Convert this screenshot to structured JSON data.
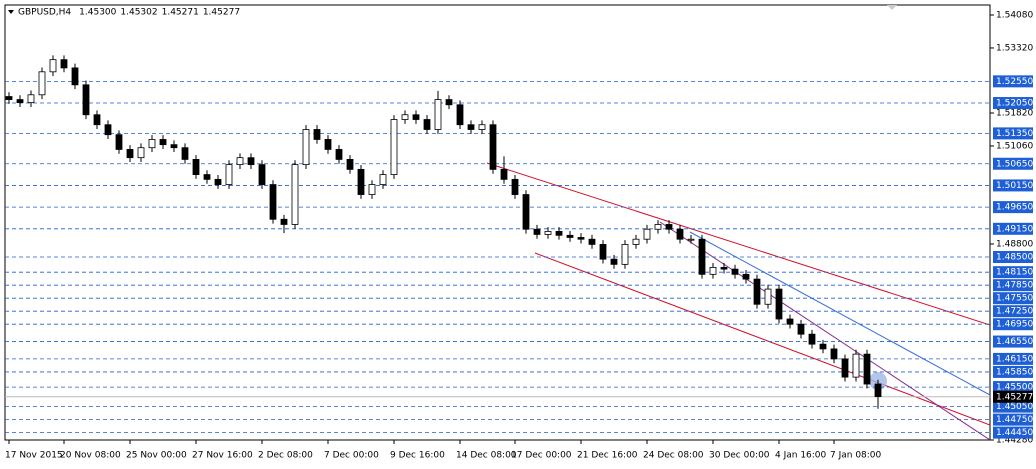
{
  "chart_data": {
    "type": "candlestick",
    "title": "GBPUSD,H4",
    "header_values": [
      {
        "value": 1.453,
        "label": "1.45300"
      },
      {
        "value": 1.45302,
        "label": "1.45302"
      },
      {
        "value": 1.45271,
        "label": "1.45271"
      },
      {
        "value": 1.45277,
        "label": "1.45277"
      }
    ],
    "categories": [
      "17 Nov 2015",
      null,
      null,
      null,
      null,
      "20 Nov 08:00",
      null,
      null,
      null,
      null,
      null,
      "25 Nov 00:00",
      null,
      null,
      null,
      null,
      null,
      "27 Nov 16:00",
      null,
      null,
      null,
      null,
      null,
      "2 Dec 08:00",
      null,
      null,
      null,
      null,
      null,
      "7 Dec 00:00",
      null,
      null,
      null,
      null,
      null,
      "9 Dec 16:00",
      null,
      null,
      null,
      null,
      null,
      "14 Dec 08:00",
      null,
      null,
      null,
      null,
      "17 Dec 00:00",
      null,
      null,
      null,
      null,
      null,
      "21 Dec 16:00",
      null,
      null,
      null,
      null,
      null,
      "24 Dec 08:00",
      null,
      null,
      null,
      null,
      null,
      "30 Dec 00:00",
      null,
      null,
      null,
      null,
      null,
      "4 Jan 16:00",
      null,
      null,
      null,
      null,
      "7 Jan 08:00",
      null,
      null,
      null,
      null
    ],
    "open": [
      1.522,
      1.5213,
      1.5206,
      1.5224,
      1.5277,
      1.5305,
      1.5286,
      1.5247,
      1.5178,
      1.5155,
      1.5132,
      1.5098,
      1.5079,
      1.5102,
      1.5121,
      1.5109,
      1.5102,
      1.5075,
      1.504,
      1.5029,
      1.5017,
      1.5063,
      1.5079,
      1.5063,
      1.5017,
      1.4937,
      1.4925,
      1.5063,
      1.5144,
      1.5121,
      1.5098,
      1.5075,
      1.5052,
      1.4994,
      1.5017,
      1.504,
      1.5167,
      1.5178,
      1.5167,
      1.5144,
      1.5213,
      1.5201,
      1.5155,
      1.5144,
      1.5155,
      1.5052,
      1.5029,
      1.4994,
      1.4914,
      1.4902,
      1.4909,
      1.49,
      1.4895,
      1.4891,
      1.4879,
      1.4845,
      1.4833,
      1.4879,
      1.4891,
      1.4914,
      1.4925,
      1.4914,
      1.4891,
      1.4891,
      1.481,
      1.4826,
      1.4822,
      1.481,
      1.4799,
      1.4741,
      1.4776,
      1.4707,
      1.4695,
      1.4672,
      1.4649,
      1.4638,
      1.4615,
      1.4573,
      1.4626,
      1.4557
    ],
    "high": [
      1.523,
      1.5223,
      1.5234,
      1.5287,
      1.5315,
      1.5315,
      1.5296,
      1.5257,
      1.5188,
      1.5165,
      1.5142,
      1.5108,
      1.5112,
      1.5131,
      1.5131,
      1.5119,
      1.5112,
      1.5085,
      1.505,
      1.5039,
      1.5073,
      1.5089,
      1.5089,
      1.5073,
      1.5027,
      1.4947,
      1.5073,
      1.5154,
      1.5154,
      1.5131,
      1.5108,
      1.5085,
      1.5062,
      1.5027,
      1.505,
      1.5177,
      1.5188,
      1.5188,
      1.5177,
      1.5233,
      1.5223,
      1.5211,
      1.5165,
      1.5165,
      1.5165,
      1.5082,
      1.5039,
      1.5004,
      1.4924,
      1.4919,
      1.4919,
      1.491,
      1.4905,
      1.4901,
      1.4889,
      1.4855,
      1.4889,
      1.4901,
      1.4924,
      1.4935,
      1.4935,
      1.4924,
      1.4901,
      1.4901,
      1.4836,
      1.4836,
      1.4832,
      1.482,
      1.4809,
      1.4786,
      1.4786,
      1.4717,
      1.4705,
      1.4682,
      1.4659,
      1.4648,
      1.4625,
      1.4636,
      1.4636,
      1.4567
    ],
    "low": [
      1.5203,
      1.5196,
      1.5196,
      1.5214,
      1.5267,
      1.5276,
      1.5237,
      1.5168,
      1.5145,
      1.5122,
      1.5088,
      1.5069,
      1.5069,
      1.5092,
      1.5099,
      1.5092,
      1.5065,
      1.503,
      1.5019,
      1.5007,
      1.5007,
      1.5053,
      1.5053,
      1.5007,
      1.4927,
      1.4905,
      1.4915,
      1.5053,
      1.5111,
      1.5088,
      1.5065,
      1.5042,
      1.4984,
      1.4984,
      1.5007,
      1.503,
      1.5157,
      1.5157,
      1.5134,
      1.5134,
      1.5191,
      1.5145,
      1.5134,
      1.5134,
      1.5042,
      1.5019,
      1.4984,
      1.4904,
      1.4892,
      1.4892,
      1.489,
      1.4885,
      1.4881,
      1.4869,
      1.4835,
      1.4823,
      1.4823,
      1.4869,
      1.4881,
      1.4904,
      1.4904,
      1.4881,
      1.4881,
      1.48,
      1.48,
      1.4812,
      1.48,
      1.4789,
      1.4731,
      1.4731,
      1.4697,
      1.4685,
      1.4662,
      1.4639,
      1.4628,
      1.4605,
      1.4563,
      1.4563,
      1.4547,
      1.45
    ],
    "close": [
      1.5213,
      1.5206,
      1.5224,
      1.5277,
      1.5305,
      1.5286,
      1.5247,
      1.5178,
      1.5155,
      1.5132,
      1.5098,
      1.5079,
      1.5102,
      1.5121,
      1.5109,
      1.5102,
      1.5075,
      1.504,
      1.5029,
      1.5017,
      1.5063,
      1.5079,
      1.5063,
      1.5017,
      1.4937,
      1.4925,
      1.5063,
      1.5144,
      1.5121,
      1.5098,
      1.5075,
      1.5052,
      1.4994,
      1.5017,
      1.504,
      1.5167,
      1.5178,
      1.5167,
      1.5144,
      1.5213,
      1.5201,
      1.5155,
      1.5144,
      1.5155,
      1.5052,
      1.5029,
      1.4994,
      1.4914,
      1.4902,
      1.4909,
      1.49,
      1.4895,
      1.4891,
      1.4879,
      1.4845,
      1.4833,
      1.4879,
      1.4891,
      1.4914,
      1.4925,
      1.4914,
      1.4891,
      1.4891,
      1.481,
      1.4826,
      1.4822,
      1.481,
      1.4799,
      1.4741,
      1.4776,
      1.4707,
      1.4695,
      1.4672,
      1.4649,
      1.4638,
      1.4615,
      1.4573,
      1.4626,
      1.4557,
      1.4528
    ],
    "ylim": [
      1.4428,
      1.5408
    ],
    "yticks": [
      {
        "value": 1.5408,
        "label": "1.54080"
      },
      {
        "value": 1.5332,
        "label": "1.53320"
      },
      {
        "value": 1.5182,
        "label": "1.51820"
      },
      {
        "value": 1.5106,
        "label": "1.51060"
      },
      {
        "value": 1.488,
        "label": "1.48800"
      },
      {
        "value": 1.4428,
        "label": "1.44280"
      }
    ],
    "levels": [
      {
        "value": 1.5255,
        "label": "1.52550"
      },
      {
        "value": 1.5205,
        "label": "1.52050"
      },
      {
        "value": 1.5135,
        "label": "1.51350"
      },
      {
        "value": 1.5065,
        "label": "1.50650"
      },
      {
        "value": 1.5015,
        "label": "1.50150"
      },
      {
        "value": 1.4965,
        "label": "1.49650"
      },
      {
        "value": 1.4915,
        "label": "1.49150"
      },
      {
        "value": 1.485,
        "label": "1.48500"
      },
      {
        "value": 1.4815,
        "label": "1.48150"
      },
      {
        "value": 1.4785,
        "label": "1.47850"
      },
      {
        "value": 1.4755,
        "label": "1.47550"
      },
      {
        "value": 1.4725,
        "label": "1.47250"
      },
      {
        "value": 1.4695,
        "label": "1.46950"
      },
      {
        "value": 1.4655,
        "label": "1.46550"
      },
      {
        "value": 1.4615,
        "label": "1.46150"
      },
      {
        "value": 1.4585,
        "label": "1.45850"
      },
      {
        "value": 1.455,
        "label": "1.45500"
      },
      {
        "value": 1.4505,
        "label": "1.45050"
      },
      {
        "value": 1.4475,
        "label": "1.44750"
      },
      {
        "value": 1.4445,
        "label": "1.44450"
      }
    ],
    "level_color": "#1f5fd6",
    "current_price": {
      "value": 1.45277,
      "label": "1.45277"
    },
    "grid": false
  }
}
